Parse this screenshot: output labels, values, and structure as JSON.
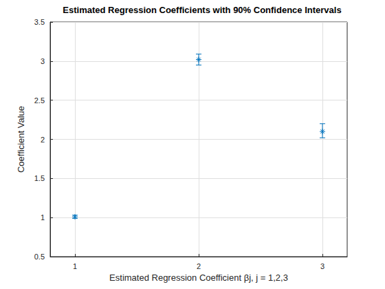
{
  "chart_data": {
    "type": "scatter",
    "title": "Estimated Regression Coefficients with 90% Confidence Intervals",
    "x_label": "Estimated Regression Coefficient βj, j = 1,2,3",
    "y_label": "Coefficient Value",
    "x": [
      1,
      2,
      3
    ],
    "values": [
      1.01,
      3.02,
      2.1
    ],
    "ci_lower": [
      0.99,
      2.95,
      2.02
    ],
    "ci_upper": [
      1.03,
      3.09,
      2.2
    ],
    "color": "#0072bd",
    "marker": "asterisk",
    "xlim": [
      0.8,
      3.2
    ],
    "xticks": [
      1,
      2,
      3
    ],
    "ylim": [
      0.5,
      3.5
    ],
    "yticks": [
      0.5,
      1,
      1.5,
      2,
      2.5,
      3,
      3.5
    ],
    "grid": true
  }
}
